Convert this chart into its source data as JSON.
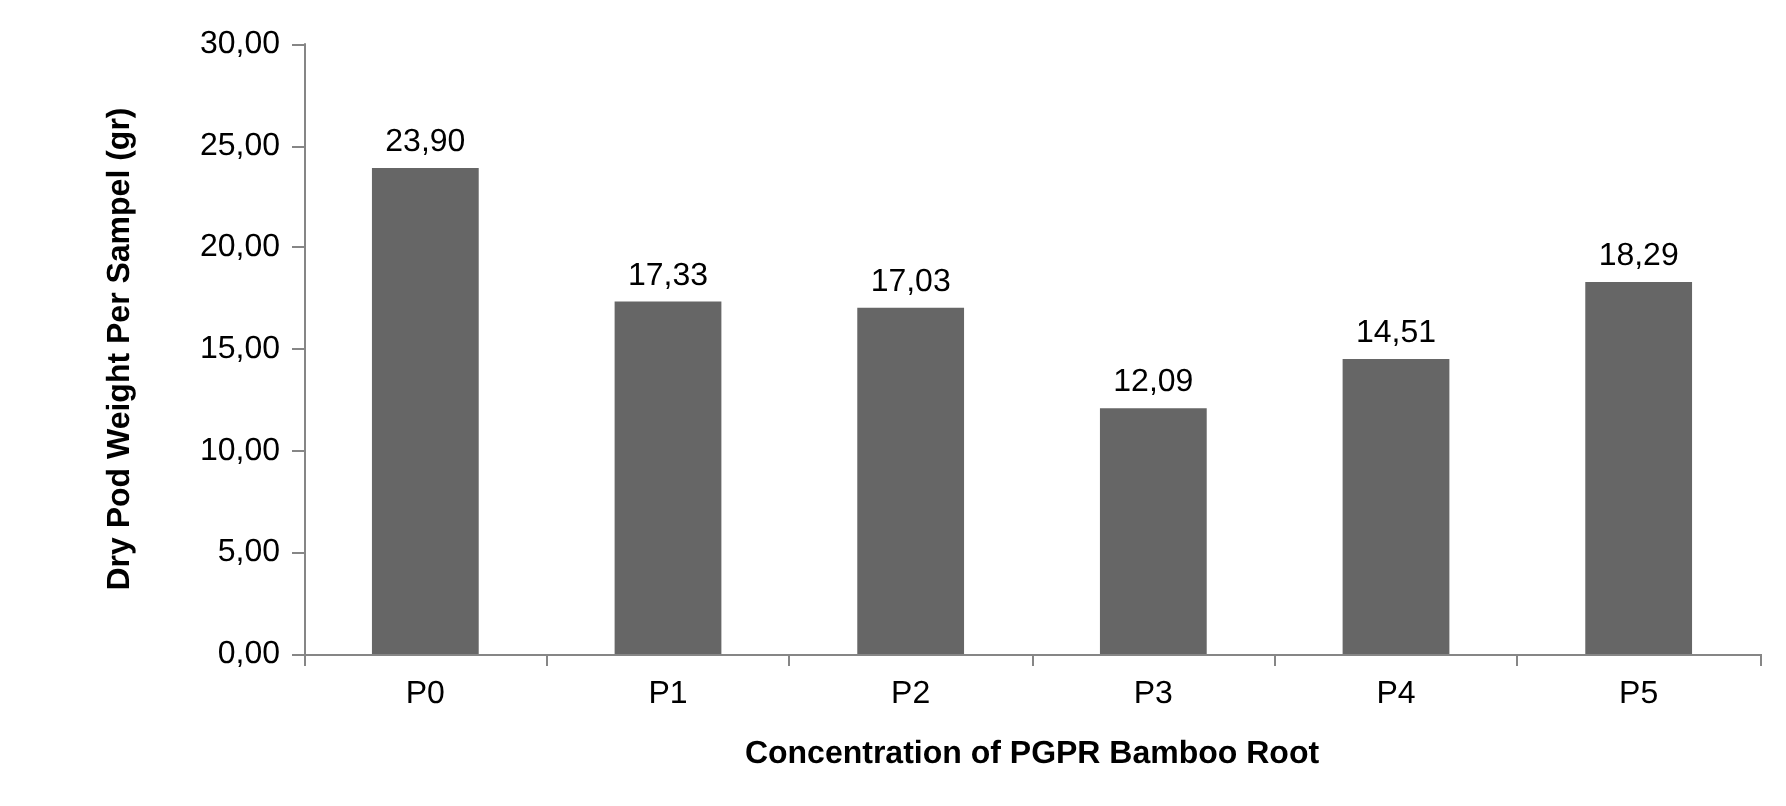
{
  "chart_data": {
    "type": "bar",
    "xlabel": "Concentration of PGPR Bamboo Root",
    "ylabel": "Dry Pod Weight Per Sampel (gr)",
    "categories": [
      "P0",
      "P1",
      "P2",
      "P3",
      "P4",
      "P5"
    ],
    "values": [
      23.9,
      17.33,
      17.03,
      12.09,
      14.51,
      18.29
    ],
    "value_labels": [
      "23,90",
      "17,33",
      "17,03",
      "12,09",
      "14,51",
      "18,29"
    ],
    "color": "#666666",
    "ylim": [
      0,
      30
    ],
    "yticks": [
      {
        "value": 0,
        "label": "0,00"
      },
      {
        "value": 5,
        "label": "5,00"
      },
      {
        "value": 10,
        "label": "10,00"
      },
      {
        "value": 15,
        "label": "15,00"
      },
      {
        "value": 20,
        "label": "20,00"
      },
      {
        "value": 25,
        "label": "25,00"
      },
      {
        "value": 30,
        "label": "30,00"
      }
    ],
    "tick_labels": "xy"
  }
}
